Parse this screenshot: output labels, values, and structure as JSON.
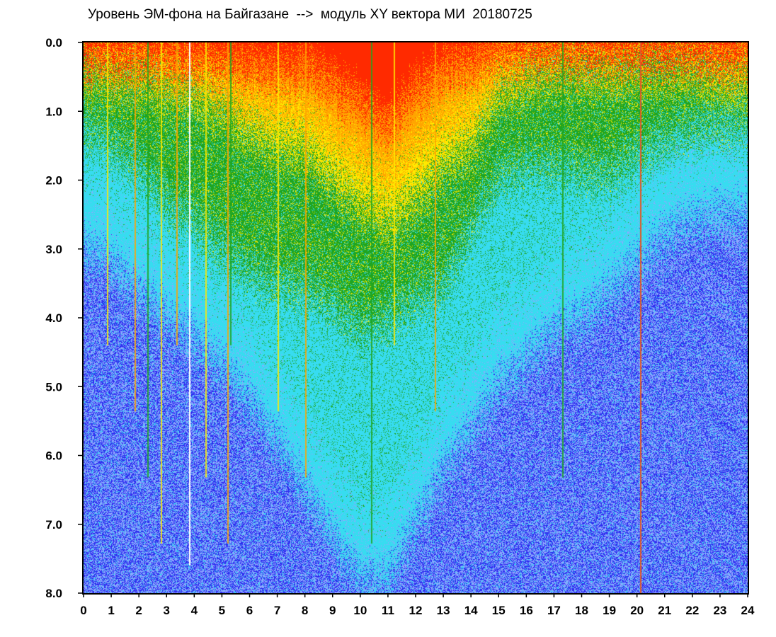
{
  "chart_data": {
    "type": "heatmap",
    "title": "Уровень ЭМ-фона на Байгазане  -->  модуль XY вектора МИ  20180725",
    "x_ticks": [
      "0",
      "1",
      "2",
      "3",
      "4",
      "5",
      "6",
      "7",
      "8",
      "9",
      "10",
      "11",
      "12",
      "13",
      "14",
      "15",
      "16",
      "17",
      "18",
      "19",
      "20",
      "21",
      "22",
      "23",
      "24"
    ],
    "y_ticks": [
      "0.0",
      "1.0",
      "2.0",
      "3.0",
      "4.0",
      "5.0",
      "6.0",
      "7.0",
      "8.0"
    ],
    "xlim": [
      0,
      24
    ],
    "ylim": [
      0,
      8
    ],
    "y_inverted": true,
    "grid": false,
    "colors": {
      "red": "#ff2a00",
      "orange": "#ffa500",
      "yellow": "#ffea00",
      "green": "#1fa51f",
      "cyan": "#37dcf0",
      "light_blue": "#8fa8ff",
      "blue": "#2d2df0"
    },
    "red_band_depth_by_hour": [
      0.25,
      0.2,
      0.2,
      0.2,
      0.25,
      0.3,
      0.35,
      0.4,
      0.4,
      0.6,
      0.9,
      1.2,
      0.7,
      0.4,
      0.3,
      0.15,
      0.12,
      0.12,
      0.12,
      0.12,
      0.12,
      0.15,
      0.15,
      0.15,
      0.15
    ],
    "yellow_band_depth_by_hour": [
      0.5,
      0.6,
      0.6,
      0.7,
      0.8,
      1.0,
      1.3,
      1.5,
      1.6,
      2.0,
      2.4,
      2.6,
      2.3,
      1.8,
      1.5,
      0.8,
      0.6,
      0.5,
      0.5,
      0.5,
      0.45,
      0.45,
      0.5,
      0.55,
      0.6
    ],
    "green_band_depth_by_hour": [
      1.3,
      1.5,
      1.8,
      2.3,
      2.6,
      3.0,
      3.3,
      3.5,
      3.6,
      3.8,
      4.2,
      4.0,
      3.8,
      3.5,
      2.7,
      2.0,
      1.8,
      1.8,
      1.9,
      1.9,
      1.6,
      1.4,
      1.3,
      1.2,
      1.2
    ],
    "cyan_band_depth_by_hour": [
      3.0,
      3.2,
      3.6,
      4.0,
      4.3,
      4.7,
      5.2,
      5.8,
      6.5,
      7.2,
      7.8,
      7.8,
      7.0,
      6.2,
      5.6,
      5.0,
      4.6,
      4.2,
      4.0,
      3.6,
      3.2,
      2.8,
      2.6,
      2.5,
      2.5
    ],
    "spike_hours": [
      0.85,
      1.85,
      2.3,
      2.8,
      3.35,
      3.8,
      4.4,
      5.2,
      5.3,
      7.0,
      8.0,
      10.4,
      11.2,
      12.7,
      17.3,
      20.1
    ]
  }
}
